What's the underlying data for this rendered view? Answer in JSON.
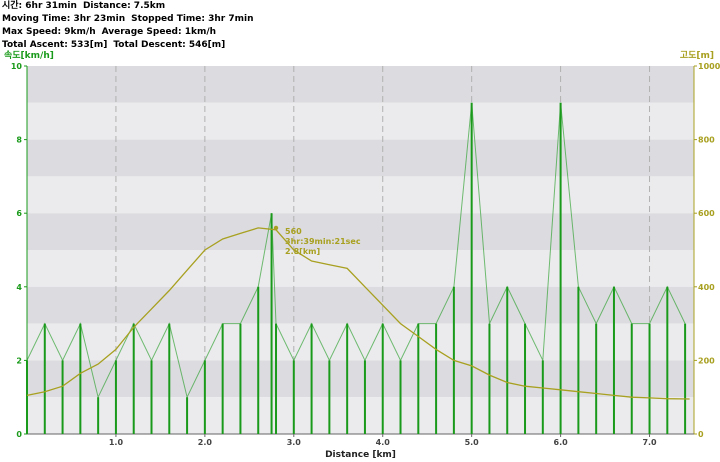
{
  "stats": {
    "line1": [
      "시간: 6hr 31min",
      "Distance: 7.5km"
    ],
    "line2": [
      "Moving Time: 3hr 23min",
      "Stopped Time: 3hr 7min"
    ],
    "line3": [
      "Max Speed: 9km/h",
      "Average Speed: 1km/h"
    ],
    "line4": [
      "Total Ascent: 533[m]",
      "Total Descent: 546[m]"
    ]
  },
  "colors": {
    "speed": "#1a9a1a",
    "altitude": "#a8a020",
    "band_dark": "#dcdce0",
    "band_light": "#ebebee"
  },
  "chart_data": {
    "type": "line",
    "xlabel": "Distance [km]",
    "ylabel_left": "속도[km/h]",
    "ylabel_right": "고도[m]",
    "xlim": [
      0,
      7.5
    ],
    "ylim_left": [
      0,
      10
    ],
    "ylim_right": [
      0,
      1000
    ],
    "x_ticks": [
      "1.0",
      "2.0",
      "3.0",
      "4.0",
      "5.0",
      "6.0",
      "7.0"
    ],
    "y_ticks_left": [
      "0",
      "2",
      "4",
      "6",
      "8",
      "10"
    ],
    "y_ticks_right": [
      "0",
      "200",
      "400",
      "600",
      "800",
      "1000"
    ],
    "grid": true,
    "series": [
      {
        "axis": "left",
        "x": [
          0.0,
          0.2,
          0.4,
          0.6,
          0.8,
          1.0,
          1.2,
          1.4,
          1.6,
          1.8,
          2.0,
          2.2,
          2.4,
          2.6,
          2.75,
          2.8,
          3.0,
          3.2,
          3.4,
          3.6,
          3.8,
          4.0,
          4.2,
          4.4,
          4.6,
          4.8,
          5.0,
          5.2,
          5.4,
          5.6,
          5.8,
          6.0,
          6.2,
          6.4,
          6.6,
          6.8,
          7.0,
          7.2,
          7.4
        ],
        "values": [
          2,
          3,
          2,
          3,
          1,
          2,
          3,
          2,
          3,
          1,
          2,
          3,
          3,
          4,
          6,
          3,
          2,
          3,
          2,
          3,
          2,
          3,
          2,
          3,
          3,
          4,
          9,
          3,
          4,
          3,
          2,
          9,
          4,
          3,
          4,
          3,
          3,
          4,
          3
        ]
      },
      {
        "axis": "right",
        "x": [
          0.0,
          0.2,
          0.4,
          0.6,
          0.8,
          1.0,
          1.2,
          1.4,
          1.6,
          1.8,
          2.0,
          2.2,
          2.4,
          2.6,
          2.8,
          3.0,
          3.2,
          3.4,
          3.6,
          3.8,
          4.0,
          4.2,
          4.4,
          4.6,
          4.8,
          5.0,
          5.2,
          5.4,
          5.6,
          5.8,
          6.0,
          6.2,
          6.4,
          6.6,
          6.8,
          7.0,
          7.2,
          7.45
        ],
        "values": [
          105,
          115,
          130,
          165,
          190,
          230,
          290,
          340,
          390,
          445,
          500,
          530,
          545,
          560,
          555,
          500,
          470,
          460,
          450,
          400,
          350,
          300,
          265,
          230,
          200,
          185,
          160,
          140,
          130,
          125,
          120,
          115,
          110,
          105,
          100,
          98,
          96,
          95
        ]
      }
    ],
    "annotation": {
      "x": 2.8,
      "y": 560,
      "lines": [
        "560",
        "3hr:39min:21sec",
        "2.8[km]"
      ]
    }
  }
}
